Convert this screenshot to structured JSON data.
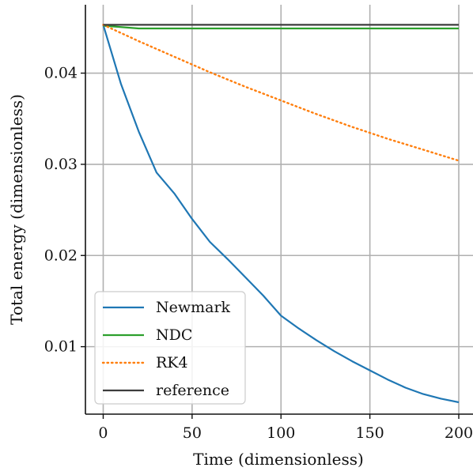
{
  "chart_data": {
    "type": "line",
    "xlabel": "Time (dimensionless)",
    "ylabel": "Total energy (dimensionless)",
    "xlim": [
      -10,
      208
    ],
    "ylim": [
      0.0026,
      0.0475
    ],
    "xticks": [
      0,
      50,
      100,
      150,
      200
    ],
    "yticks": [
      0.01,
      0.02,
      0.03,
      0.04
    ],
    "xtick_labels": [
      "0",
      "50",
      "100",
      "150",
      "200"
    ],
    "ytick_labels": [
      "0.01",
      "0.02",
      "0.03",
      "0.04"
    ],
    "grid": true,
    "legend_position": "lower-left",
    "series": [
      {
        "name": "Newmark",
        "color": "#1f77b4",
        "style": "solid",
        "x": [
          0,
          10,
          20,
          30,
          40,
          50,
          60,
          70,
          80,
          90,
          100,
          110,
          120,
          130,
          140,
          150,
          160,
          170,
          180,
          190,
          200
        ],
        "y": [
          0.0453,
          0.0388,
          0.0336,
          0.0291,
          0.0268,
          0.024,
          0.0215,
          0.0196,
          0.0176,
          0.0156,
          0.0134,
          0.012,
          0.0107,
          0.0095,
          0.0084,
          0.0074,
          0.0064,
          0.0055,
          0.0048,
          0.0043,
          0.0039
        ]
      },
      {
        "name": "NDC",
        "color": "#2ca02c",
        "style": "solid",
        "x": [
          0,
          20,
          40,
          60,
          80,
          100,
          120,
          140,
          160,
          180,
          200
        ],
        "y": [
          0.0452,
          0.0449,
          0.0449,
          0.0449,
          0.0449,
          0.0449,
          0.0449,
          0.0449,
          0.0449,
          0.0449,
          0.0449
        ]
      },
      {
        "name": "RK4",
        "color": "#ff7f0e",
        "style": "dotted",
        "x": [
          0,
          20,
          40,
          60,
          80,
          100,
          120,
          140,
          160,
          180,
          200
        ],
        "y": [
          0.0453,
          0.0435,
          0.0418,
          0.0401,
          0.0385,
          0.037,
          0.0355,
          0.0341,
          0.0328,
          0.0316,
          0.0304
        ]
      },
      {
        "name": "reference",
        "color": "#3d3d3d",
        "style": "solid",
        "x": [
          0,
          200
        ],
        "y": [
          0.0453,
          0.0453
        ]
      }
    ]
  }
}
